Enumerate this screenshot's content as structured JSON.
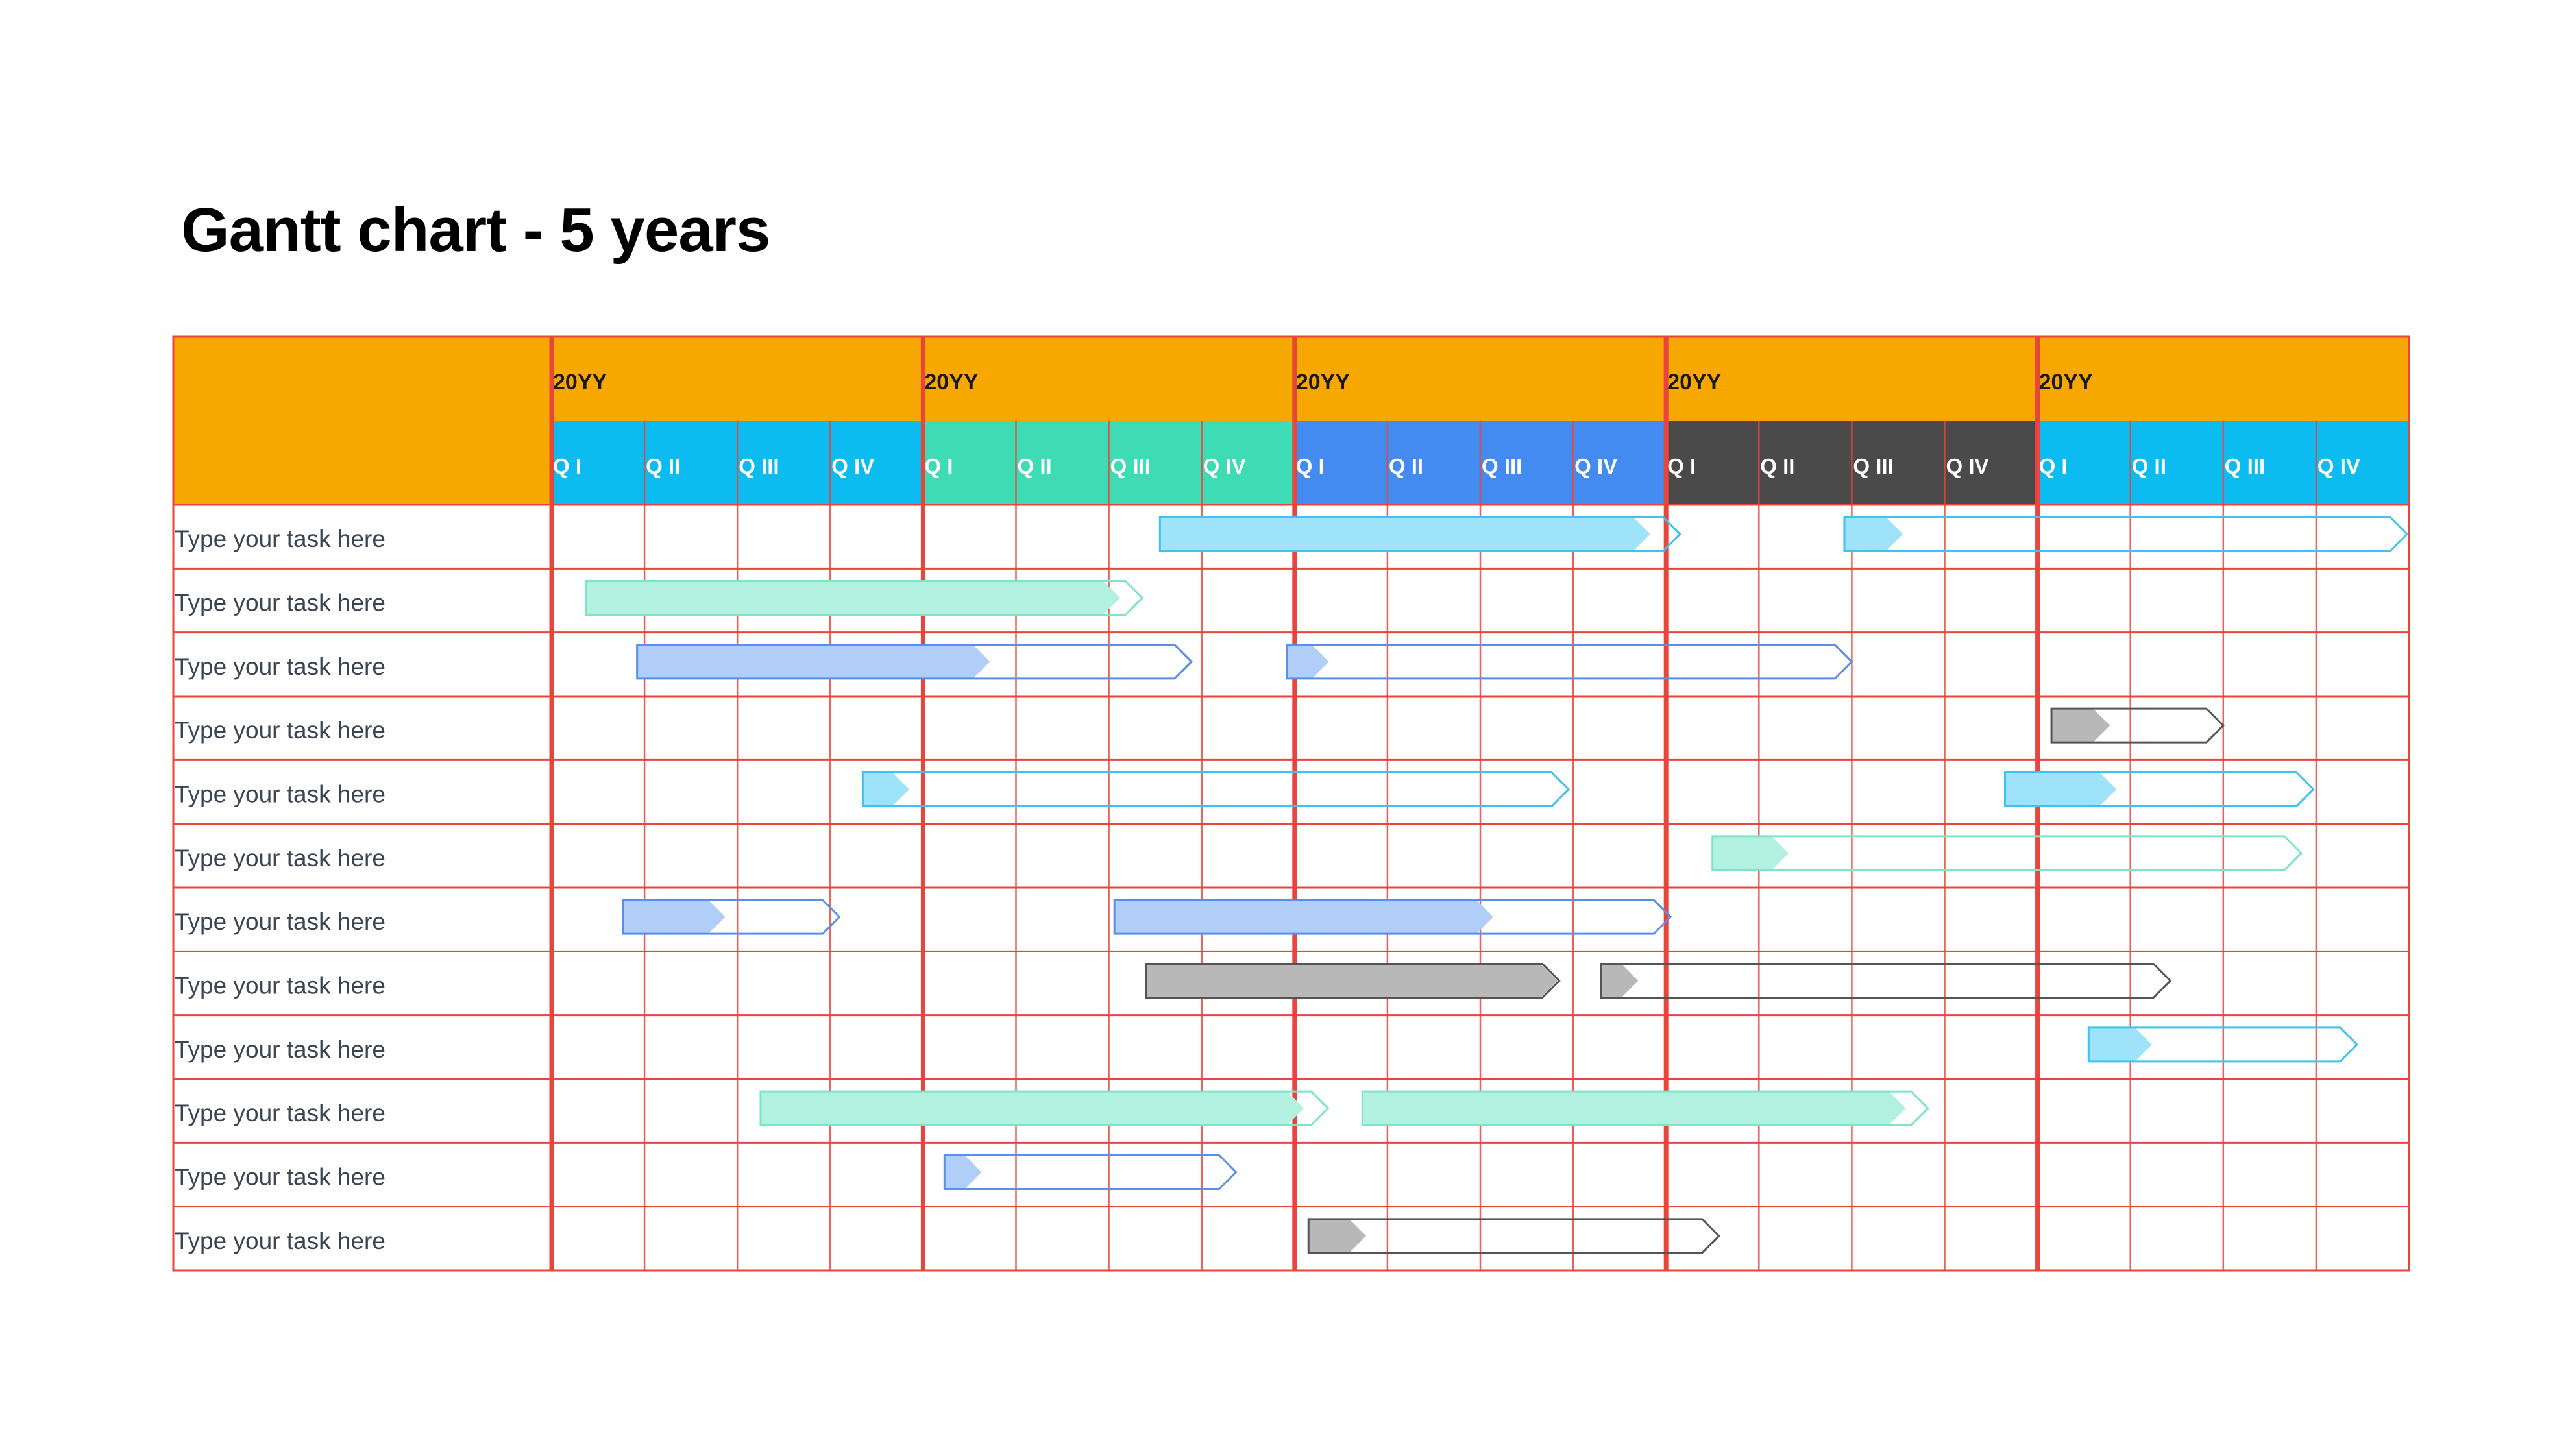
{
  "title": "Gantt chart - 5 years",
  "colors": {
    "header_bg": "#F7A800",
    "grid_line": "#E8453C",
    "task_text": "#3A4452",
    "year_colors": [
      "#0CBCF0",
      "#3DDCB5",
      "#438BF0",
      "#4A4A4A",
      "#0CBCF0"
    ],
    "bar_fill": {
      "cyan": "#9EE3FA",
      "teal": "#B2F1DF",
      "blue": "#B0CEF8",
      "gray": "#B8B8B8"
    },
    "bar_stroke": {
      "cyan": "#3EC3EE",
      "teal": "#7FE3C6",
      "blue": "#5B8EE6",
      "gray": "#555555"
    }
  },
  "chart_data": {
    "type": "gantt",
    "years": [
      "20YY",
      "20YY",
      "20YY",
      "20YY",
      "20YY"
    ],
    "quarters": [
      "Q I",
      "Q II",
      "Q III",
      "Q IV"
    ],
    "tasks": [
      {
        "label": "Type your task here",
        "bars": [
          {
            "start": 6.55,
            "end": 12.15,
            "progress": 5.28,
            "color": "cyan"
          },
          {
            "start": 13.92,
            "end": 19.98,
            "progress": 0.63,
            "color": "cyan"
          }
        ]
      },
      {
        "label": "Type your task here",
        "bars": [
          {
            "start": 0.37,
            "end": 6.36,
            "progress": 5.75,
            "color": "teal"
          }
        ]
      },
      {
        "label": "Type your task here",
        "bars": [
          {
            "start": 0.92,
            "end": 6.89,
            "progress": 3.8,
            "color": "blue"
          },
          {
            "start": 7.92,
            "end": 14.0,
            "progress": 0.45,
            "color": "blue"
          }
        ]
      },
      {
        "label": "Type your task here",
        "bars": [
          {
            "start": 16.15,
            "end": 18.0,
            "progress": 0.63,
            "color": "gray"
          }
        ]
      },
      {
        "label": "Type your task here",
        "bars": [
          {
            "start": 3.35,
            "end": 10.95,
            "progress": 0.5,
            "color": "cyan"
          },
          {
            "start": 15.65,
            "end": 18.97,
            "progress": 1.2,
            "color": "cyan"
          }
        ]
      },
      {
        "label": "Type your task here",
        "bars": [
          {
            "start": 12.5,
            "end": 18.84,
            "progress": 0.82,
            "color": "teal"
          }
        ]
      },
      {
        "label": "Type your task here",
        "bars": [
          {
            "start": 0.77,
            "end": 3.1,
            "progress": 1.1,
            "color": "blue"
          },
          {
            "start": 6.06,
            "end": 12.05,
            "progress": 4.08,
            "color": "blue"
          }
        ]
      },
      {
        "label": "Type your task here",
        "bars": [
          {
            "start": 6.4,
            "end": 10.85,
            "progress": 4.43,
            "color": "gray"
          },
          {
            "start": 11.3,
            "end": 17.43,
            "progress": 0.4,
            "color": "gray"
          }
        ]
      },
      {
        "label": "Type your task here",
        "bars": [
          {
            "start": 16.55,
            "end": 19.44,
            "progress": 0.68,
            "color": "cyan"
          }
        ]
      },
      {
        "label": "Type your task here",
        "bars": [
          {
            "start": 2.25,
            "end": 8.36,
            "progress": 5.85,
            "color": "teal"
          },
          {
            "start": 8.73,
            "end": 14.82,
            "progress": 5.85,
            "color": "teal"
          }
        ]
      },
      {
        "label": "Type your task here",
        "bars": [
          {
            "start": 4.23,
            "end": 7.37,
            "progress": 0.4,
            "color": "blue"
          }
        ]
      },
      {
        "label": "Type your task here",
        "bars": [
          {
            "start": 8.15,
            "end": 12.57,
            "progress": 0.62,
            "color": "gray"
          }
        ]
      }
    ]
  }
}
